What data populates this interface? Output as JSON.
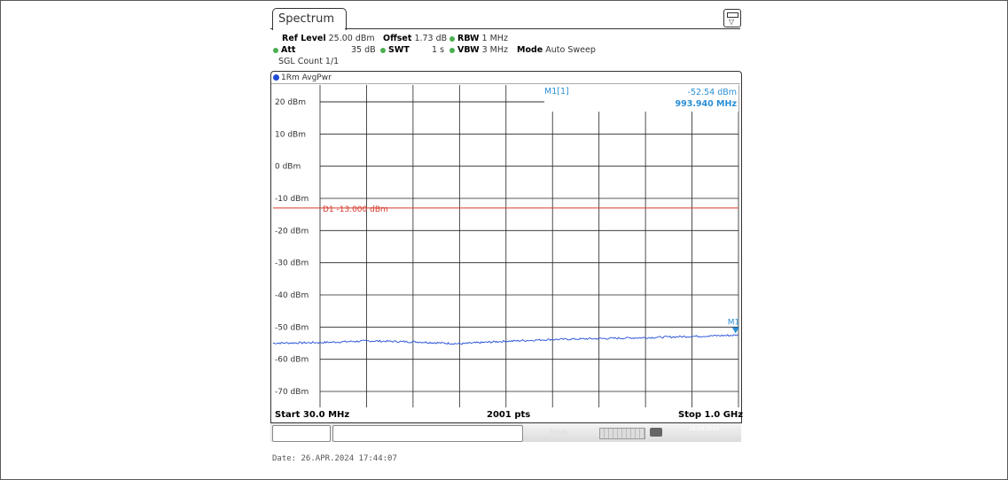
{
  "tab": {
    "label": "Spectrum"
  },
  "menu_icon": "window-menu-icon",
  "settings": {
    "ref_level_label": "Ref Level",
    "ref_level_value": "25.00 dBm",
    "offset_label": "Offset",
    "offset_value": "1.73 dB",
    "rbw_label": "RBW",
    "rbw_value": "1 MHz",
    "att_label": "Att",
    "att_value": "35 dB",
    "swt_label": "SWT",
    "swt_value": "1 s",
    "vbw_label": "VBW",
    "vbw_value": "3 MHz",
    "mode_label": "Mode",
    "mode_value": "Auto Sweep",
    "sgl_count": "SGL Count 1/1"
  },
  "trace": {
    "label": "1Rm AvgPwr",
    "color": "#1f4bd6"
  },
  "marker": {
    "label": "M1[1]",
    "level": "-52.54 dBm",
    "freq": "993.940 MHz",
    "tag": "M1",
    "color": "#2a8fd6"
  },
  "display_line": {
    "label": "D1 -13.000 dBm",
    "value": -13.0,
    "color": "#d33a2c"
  },
  "footer": {
    "start": "Start 30.0 MHz",
    "points": "2001 pts",
    "stop": "Stop 1.0 GHz"
  },
  "statusbar": {
    "ready": "Ready",
    "date": "26.04.2024"
  },
  "date_line": "Date: 26.APR.2024  17:44:07",
  "chart_data": {
    "type": "line",
    "y_tick_labels": [
      "20 dBm",
      "10 dBm",
      "0 dBm",
      "-10 dBm",
      "-20 dBm",
      "-30 dBm",
      "-40 dBm",
      "-50 dBm",
      "-60 dBm",
      "-70 dBm"
    ],
    "ylim": [
      -75,
      25
    ],
    "xlim": [
      30,
      1000
    ],
    "x_unit": "MHz",
    "series": [
      {
        "x": [
          30,
          130,
          230,
          330,
          420,
          500,
          600,
          700,
          800,
          900,
          1000
        ],
        "values": [
          -55.0,
          -54.8,
          -54.3,
          -54.6,
          -55.2,
          -54.5,
          -53.9,
          -53.6,
          -53.3,
          -52.9,
          -52.5
        ]
      }
    ],
    "marker_point": {
      "x": 993.94,
      "y": -52.54
    },
    "grid": true
  }
}
